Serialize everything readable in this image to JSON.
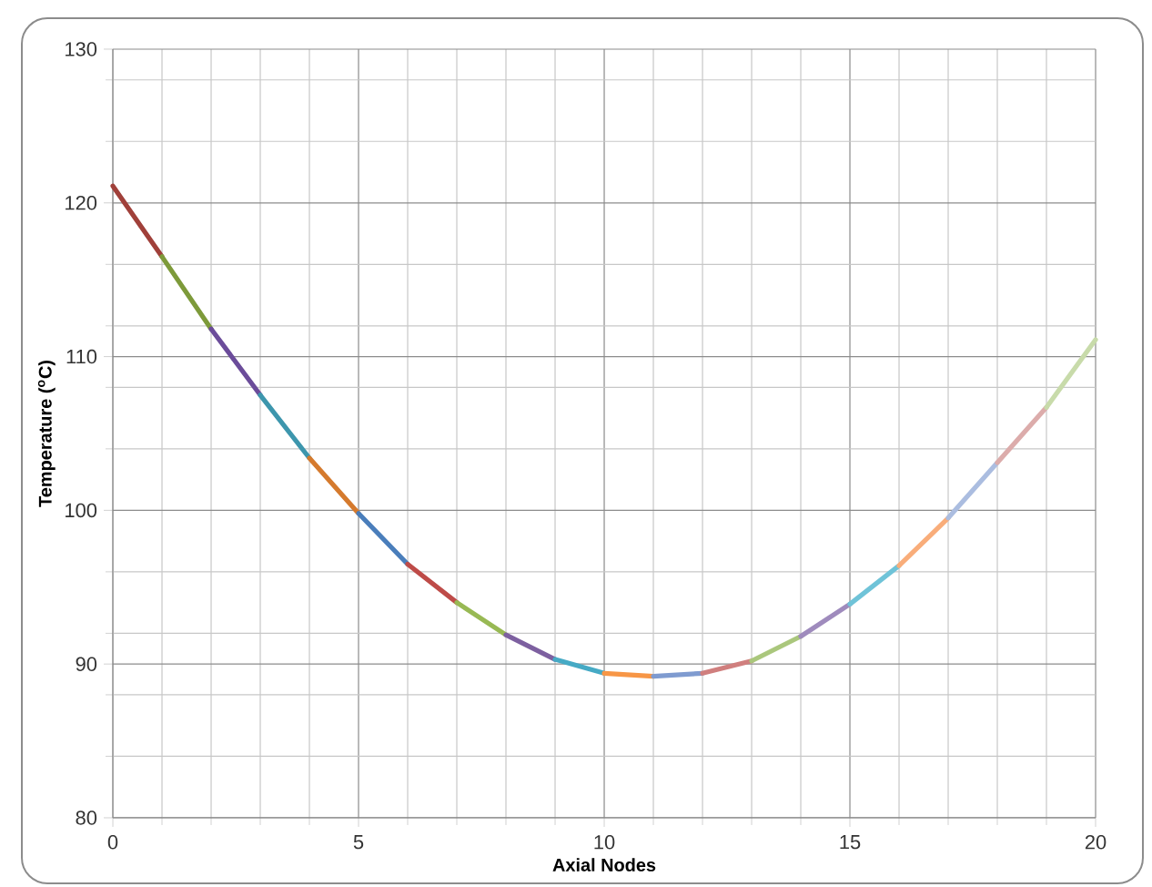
{
  "chart_data": {
    "type": "line",
    "xlabel": "Axial Nodes",
    "ylabel": "Temperature ($^{o}$C)",
    "xlim": [
      0,
      20
    ],
    "ylim": [
      80,
      130
    ],
    "xticks": [
      0,
      5,
      10,
      15,
      20
    ],
    "yticks": [
      80,
      90,
      100,
      110,
      120,
      130
    ],
    "grid": true,
    "marker": "none",
    "line_style": "solid",
    "series": [
      {
        "color": "#a0403a",
        "x": [
          0,
          1
        ],
        "values": [
          121.1,
          116.5
        ]
      },
      {
        "color": "#7d9a3a",
        "x": [
          1,
          2
        ],
        "values": [
          116.5,
          111.8
        ]
      },
      {
        "color": "#6b4c9a",
        "x": [
          2,
          3
        ],
        "values": [
          111.8,
          107.5
        ]
      },
      {
        "color": "#3d96ad",
        "x": [
          3,
          4
        ],
        "values": [
          107.5,
          103.4
        ]
      },
      {
        "color": "#d57a2d",
        "x": [
          4,
          5
        ],
        "values": [
          103.4,
          99.8
        ]
      },
      {
        "color": "#4a7ebb",
        "x": [
          5,
          6
        ],
        "values": [
          99.8,
          96.5
        ]
      },
      {
        "color": "#be4b48",
        "x": [
          6,
          7
        ],
        "values": [
          96.5,
          94.0
        ]
      },
      {
        "color": "#98b954",
        "x": [
          7,
          8
        ],
        "values": [
          94.0,
          91.9
        ]
      },
      {
        "color": "#7d60a0",
        "x": [
          8,
          9
        ],
        "values": [
          91.9,
          90.3
        ]
      },
      {
        "color": "#46aac5",
        "x": [
          9,
          10
        ],
        "values": [
          90.3,
          89.4
        ]
      },
      {
        "color": "#f79646",
        "x": [
          10,
          11
        ],
        "values": [
          89.4,
          89.2
        ]
      },
      {
        "color": "#7f9bd0",
        "x": [
          11,
          12
        ],
        "values": [
          89.2,
          89.4
        ]
      },
      {
        "color": "#d07f7e",
        "x": [
          12,
          13
        ],
        "values": [
          89.4,
          90.2
        ]
      },
      {
        "color": "#aac77c",
        "x": [
          13,
          14
        ],
        "values": [
          90.2,
          91.8
        ]
      },
      {
        "color": "#9f8bbd",
        "x": [
          14,
          15
        ],
        "values": [
          91.8,
          93.9
        ]
      },
      {
        "color": "#6fc3d8",
        "x": [
          15,
          16
        ],
        "values": [
          93.9,
          96.4
        ]
      },
      {
        "color": "#f9ad7a",
        "x": [
          16,
          17
        ],
        "values": [
          96.4,
          99.5
        ]
      },
      {
        "color": "#abbde0",
        "x": [
          17,
          18
        ],
        "values": [
          99.5,
          103.1
        ]
      },
      {
        "color": "#dcacab",
        "x": [
          18,
          19
        ],
        "values": [
          103.1,
          106.7
        ]
      },
      {
        "color": "#c8dbaa",
        "x": [
          19,
          20
        ],
        "values": [
          106.7,
          111.1
        ]
      }
    ]
  }
}
